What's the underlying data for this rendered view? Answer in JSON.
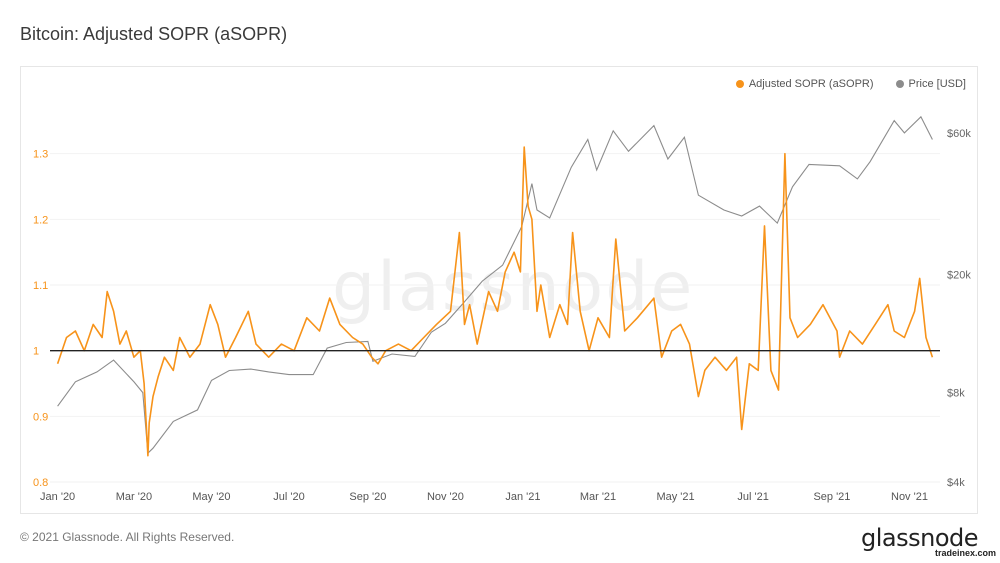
{
  "page": {
    "title": "Bitcoin: Adjusted SOPR (aSOPR)"
  },
  "watermark": "glassnode",
  "footer": {
    "copyright": "© 2021 Glassnode. All Rights Reserved.",
    "brand": "glassnode",
    "source": "tradeinex.com"
  },
  "colors": {
    "asopr": "#f7931a",
    "price": "#8c8c8c",
    "baseline": "#222222",
    "grid": "#f2f2f2"
  },
  "chart_data": {
    "type": "line",
    "title": "Bitcoin: Adjusted SOPR (aSOPR)",
    "legend_position": "top-right",
    "x_axis": {
      "range": [
        "2019-12-26",
        "2021-11-25"
      ],
      "ticks": [
        {
          "date": "2020-01-01",
          "label": "Jan '20"
        },
        {
          "date": "2020-03-01",
          "label": "Mar '20"
        },
        {
          "date": "2020-05-01",
          "label": "May '20"
        },
        {
          "date": "2020-07-01",
          "label": "Jul '20"
        },
        {
          "date": "2020-09-01",
          "label": "Sep '20"
        },
        {
          "date": "2020-11-01",
          "label": "Nov '20"
        },
        {
          "date": "2021-01-01",
          "label": "Jan '21"
        },
        {
          "date": "2021-03-01",
          "label": "Mar '21"
        },
        {
          "date": "2021-05-01",
          "label": "May '21"
        },
        {
          "date": "2021-07-01",
          "label": "Jul '21"
        },
        {
          "date": "2021-09-01",
          "label": "Sep '21"
        },
        {
          "date": "2021-11-01",
          "label": "Nov '21"
        }
      ]
    },
    "y_left": {
      "range": [
        0.8,
        1.4
      ],
      "ticks": [
        {
          "value": 0.8,
          "label": "0.8"
        },
        {
          "value": 0.9,
          "label": "0.9"
        },
        {
          "value": 1.0,
          "label": "1"
        },
        {
          "value": 1.1,
          "label": "1.1"
        },
        {
          "value": 1.2,
          "label": "1.2"
        },
        {
          "value": 1.3,
          "label": "1.3"
        }
      ]
    },
    "y_right": {
      "scale": "log",
      "range": [
        4000,
        85000
      ],
      "ticks": [
        {
          "value": 4000,
          "label": "$4k"
        },
        {
          "value": 8000,
          "label": "$8k"
        },
        {
          "value": 20000,
          "label": "$20k"
        },
        {
          "value": 60000,
          "label": "$60k"
        }
      ]
    },
    "baseline": 1.0,
    "series": [
      {
        "name": "Adjusted SOPR (aSOPR)",
        "axis": "left",
        "points": [
          [
            "2020-01-01",
            0.98
          ],
          [
            "2020-01-08",
            1.02
          ],
          [
            "2020-01-15",
            1.03
          ],
          [
            "2020-01-22",
            1.0
          ],
          [
            "2020-01-29",
            1.04
          ],
          [
            "2020-02-05",
            1.02
          ],
          [
            "2020-02-09",
            1.09
          ],
          [
            "2020-02-14",
            1.06
          ],
          [
            "2020-02-19",
            1.01
          ],
          [
            "2020-02-24",
            1.03
          ],
          [
            "2020-03-01",
            0.99
          ],
          [
            "2020-03-06",
            1.0
          ],
          [
            "2020-03-09",
            0.95
          ],
          [
            "2020-03-12",
            0.84
          ],
          [
            "2020-03-13",
            0.89
          ],
          [
            "2020-03-16",
            0.93
          ],
          [
            "2020-03-20",
            0.96
          ],
          [
            "2020-03-25",
            0.99
          ],
          [
            "2020-04-01",
            0.97
          ],
          [
            "2020-04-06",
            1.02
          ],
          [
            "2020-04-14",
            0.99
          ],
          [
            "2020-04-22",
            1.01
          ],
          [
            "2020-04-30",
            1.07
          ],
          [
            "2020-05-06",
            1.04
          ],
          [
            "2020-05-12",
            0.99
          ],
          [
            "2020-05-20",
            1.02
          ],
          [
            "2020-05-30",
            1.06
          ],
          [
            "2020-06-05",
            1.01
          ],
          [
            "2020-06-15",
            0.99
          ],
          [
            "2020-06-25",
            1.01
          ],
          [
            "2020-07-05",
            1.0
          ],
          [
            "2020-07-15",
            1.05
          ],
          [
            "2020-07-25",
            1.03
          ],
          [
            "2020-08-02",
            1.08
          ],
          [
            "2020-08-10",
            1.04
          ],
          [
            "2020-08-20",
            1.02
          ],
          [
            "2020-08-28",
            1.01
          ],
          [
            "2020-09-04",
            0.99
          ],
          [
            "2020-09-09",
            0.98
          ],
          [
            "2020-09-15",
            1.0
          ],
          [
            "2020-09-25",
            1.01
          ],
          [
            "2020-10-05",
            1.0
          ],
          [
            "2020-10-15",
            1.02
          ],
          [
            "2020-10-25",
            1.04
          ],
          [
            "2020-11-05",
            1.06
          ],
          [
            "2020-11-12",
            1.18
          ],
          [
            "2020-11-16",
            1.04
          ],
          [
            "2020-11-20",
            1.07
          ],
          [
            "2020-11-26",
            1.01
          ],
          [
            "2020-12-05",
            1.09
          ],
          [
            "2020-12-12",
            1.06
          ],
          [
            "2020-12-18",
            1.12
          ],
          [
            "2020-12-25",
            1.15
          ],
          [
            "2020-12-30",
            1.12
          ],
          [
            "2021-01-02",
            1.31
          ],
          [
            "2021-01-05",
            1.22
          ],
          [
            "2021-01-08",
            1.2
          ],
          [
            "2021-01-12",
            1.06
          ],
          [
            "2021-01-15",
            1.1
          ],
          [
            "2021-01-22",
            1.02
          ],
          [
            "2021-01-30",
            1.07
          ],
          [
            "2021-02-05",
            1.04
          ],
          [
            "2021-02-09",
            1.18
          ],
          [
            "2021-02-15",
            1.06
          ],
          [
            "2021-02-22",
            1.0
          ],
          [
            "2021-03-01",
            1.05
          ],
          [
            "2021-03-10",
            1.02
          ],
          [
            "2021-03-15",
            1.17
          ],
          [
            "2021-03-22",
            1.03
          ],
          [
            "2021-04-01",
            1.05
          ],
          [
            "2021-04-14",
            1.08
          ],
          [
            "2021-04-20",
            0.99
          ],
          [
            "2021-04-28",
            1.03
          ],
          [
            "2021-05-05",
            1.04
          ],
          [
            "2021-05-12",
            1.01
          ],
          [
            "2021-05-19",
            0.93
          ],
          [
            "2021-05-24",
            0.97
          ],
          [
            "2021-06-01",
            0.99
          ],
          [
            "2021-06-10",
            0.97
          ],
          [
            "2021-06-18",
            0.99
          ],
          [
            "2021-06-22",
            0.88
          ],
          [
            "2021-06-28",
            0.98
          ],
          [
            "2021-07-05",
            0.97
          ],
          [
            "2021-07-10",
            1.19
          ],
          [
            "2021-07-15",
            0.97
          ],
          [
            "2021-07-21",
            0.94
          ],
          [
            "2021-07-26",
            1.3
          ],
          [
            "2021-07-30",
            1.05
          ],
          [
            "2021-08-05",
            1.02
          ],
          [
            "2021-08-15",
            1.04
          ],
          [
            "2021-08-25",
            1.07
          ],
          [
            "2021-09-05",
            1.03
          ],
          [
            "2021-09-07",
            0.99
          ],
          [
            "2021-09-15",
            1.03
          ],
          [
            "2021-09-25",
            1.01
          ],
          [
            "2021-10-05",
            1.04
          ],
          [
            "2021-10-15",
            1.07
          ],
          [
            "2021-10-20",
            1.03
          ],
          [
            "2021-10-28",
            1.02
          ],
          [
            "2021-11-05",
            1.06
          ],
          [
            "2021-11-09",
            1.11
          ],
          [
            "2021-11-14",
            1.02
          ],
          [
            "2021-11-19",
            0.99
          ]
        ]
      },
      {
        "name": "Price [USD]",
        "axis": "right",
        "points": [
          [
            "2020-01-01",
            7200
          ],
          [
            "2020-01-15",
            8700
          ],
          [
            "2020-02-01",
            9400
          ],
          [
            "2020-02-14",
            10300
          ],
          [
            "2020-03-01",
            8700
          ],
          [
            "2020-03-08",
            8000
          ],
          [
            "2020-03-12",
            5000
          ],
          [
            "2020-03-16",
            5200
          ],
          [
            "2020-04-01",
            6400
          ],
          [
            "2020-04-20",
            7000
          ],
          [
            "2020-05-01",
            8800
          ],
          [
            "2020-05-15",
            9500
          ],
          [
            "2020-06-01",
            9600
          ],
          [
            "2020-06-15",
            9400
          ],
          [
            "2020-07-01",
            9200
          ],
          [
            "2020-07-20",
            9200
          ],
          [
            "2020-07-31",
            11300
          ],
          [
            "2020-08-15",
            11800
          ],
          [
            "2020-09-01",
            11900
          ],
          [
            "2020-09-05",
            10200
          ],
          [
            "2020-09-20",
            10800
          ],
          [
            "2020-10-08",
            10600
          ],
          [
            "2020-10-21",
            12800
          ],
          [
            "2020-11-01",
            13700
          ],
          [
            "2020-11-15",
            16000
          ],
          [
            "2020-11-30",
            19000
          ],
          [
            "2020-12-16",
            21500
          ],
          [
            "2020-12-31",
            29000
          ],
          [
            "2021-01-08",
            40500
          ],
          [
            "2021-01-12",
            33000
          ],
          [
            "2021-01-22",
            31000
          ],
          [
            "2021-02-08",
            46000
          ],
          [
            "2021-02-21",
            57000
          ],
          [
            "2021-02-28",
            45000
          ],
          [
            "2021-03-13",
            61000
          ],
          [
            "2021-03-25",
            52000
          ],
          [
            "2021-04-14",
            63500
          ],
          [
            "2021-04-25",
            49000
          ],
          [
            "2021-05-08",
            58000
          ],
          [
            "2021-05-19",
            37000
          ],
          [
            "2021-06-08",
            33000
          ],
          [
            "2021-06-22",
            31500
          ],
          [
            "2021-07-06",
            34000
          ],
          [
            "2021-07-20",
            29800
          ],
          [
            "2021-08-01",
            39500
          ],
          [
            "2021-08-14",
            47000
          ],
          [
            "2021-09-07",
            46500
          ],
          [
            "2021-09-21",
            42000
          ],
          [
            "2021-10-01",
            48000
          ],
          [
            "2021-10-20",
            66000
          ],
          [
            "2021-10-28",
            60000
          ],
          [
            "2021-11-10",
            68000
          ],
          [
            "2021-11-19",
            57000
          ]
        ]
      }
    ]
  }
}
